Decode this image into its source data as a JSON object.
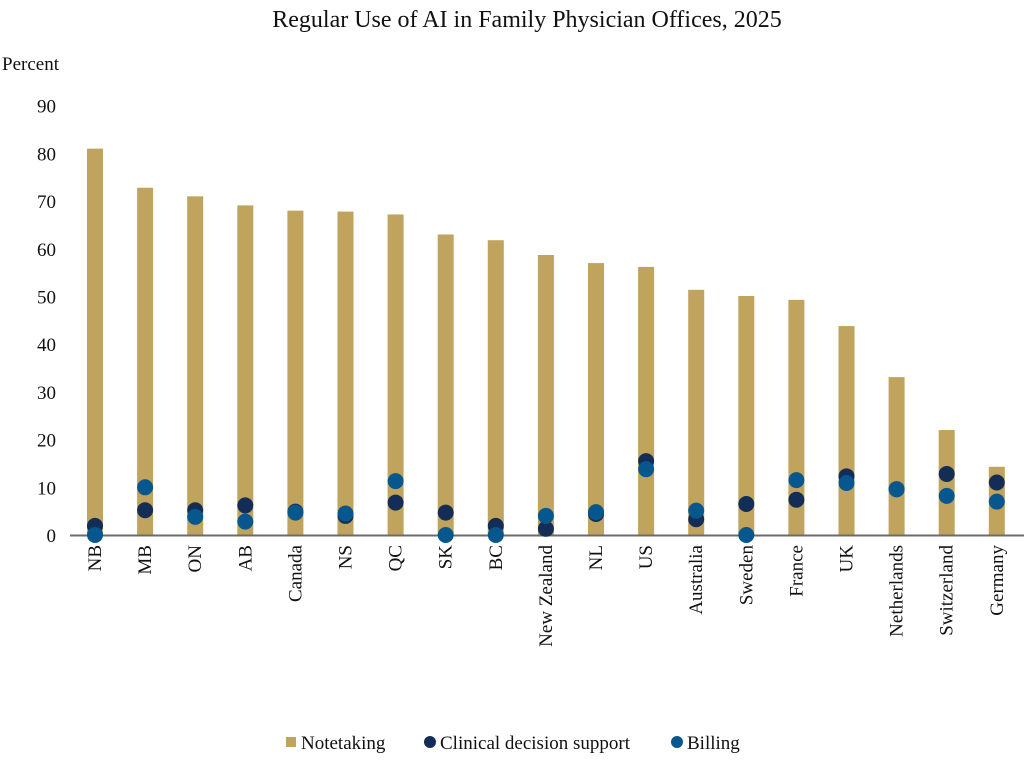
{
  "chart_data": {
    "type": "bar",
    "title": "Regular Use of AI in Family Physician Offices, 2025",
    "ylabel": "Percent",
    "xlabel": "",
    "ylim": [
      0,
      90
    ],
    "yticks": [
      0,
      10,
      20,
      30,
      40,
      50,
      60,
      70,
      80,
      90
    ],
    "grid": false,
    "legend_position": "bottom",
    "categories": [
      "NB",
      "MB",
      "ON",
      "AB",
      "Canada",
      "NS",
      "QC",
      "SK",
      "BC",
      "New Zealand",
      "NL",
      "US",
      "Australia",
      "Sweden",
      "France",
      "UK",
      "Netherlands",
      "Switzerland",
      "Germany"
    ],
    "series": [
      {
        "name": "Notetaking",
        "kind": "bar",
        "color": "#c0a35c",
        "values": [
          81.0,
          72.8,
          71.0,
          69.1,
          68.0,
          67.8,
          67.2,
          63.0,
          61.8,
          58.7,
          57.0,
          56.2,
          51.4,
          50.1,
          49.3,
          43.8,
          33.1,
          22.0,
          14.3
        ]
      },
      {
        "name": "Clinical decision support",
        "kind": "dot",
        "color": "#132d57",
        "values": [
          1.9,
          5.2,
          5.2,
          6.2,
          4.9,
          4.0,
          6.8,
          4.7,
          1.9,
          1.3,
          4.4,
          15.5,
          3.3,
          6.5,
          7.4,
          12.3,
          9.6,
          12.8,
          11.0
        ]
      },
      {
        "name": "Billing",
        "kind": "dot",
        "color": "#07578f",
        "values": [
          0,
          10.0,
          3.8,
          2.8,
          4.7,
          4.5,
          11.3,
          0,
          0,
          4.0,
          4.8,
          13.8,
          5.1,
          0,
          11.5,
          10.9,
          9.6,
          8.2,
          7.0
        ]
      }
    ]
  }
}
